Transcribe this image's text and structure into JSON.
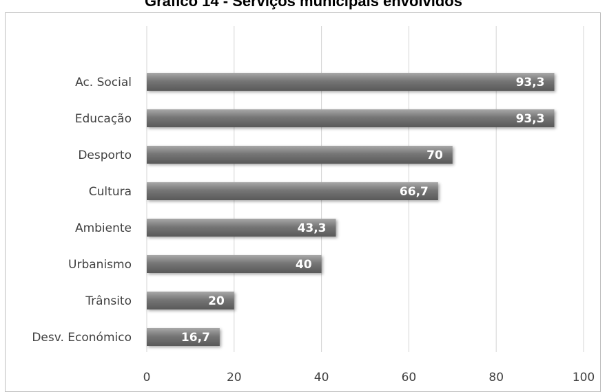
{
  "chart_data": {
    "type": "bar",
    "orientation": "horizontal",
    "title": "Gráfico 14 - Serviços municipais envolvidos",
    "categories": [
      "Ac. Social",
      "Educação",
      "Desporto",
      "Cultura",
      "Ambiente",
      "Urbanismo",
      "Trânsito",
      "Desv. Económico"
    ],
    "values": [
      93.3,
      93.3,
      70,
      66.7,
      43.3,
      40,
      20,
      16.7
    ],
    "data_labels": [
      "93,3",
      "93,3",
      "70",
      "66,7",
      "43,3",
      "40",
      "20",
      "16,7"
    ],
    "xlim": [
      0,
      100
    ],
    "xticks": [
      0,
      20,
      40,
      60,
      80,
      100
    ],
    "xtick_labels": [
      "0",
      "20",
      "40",
      "60",
      "80",
      "100"
    ],
    "grid": "vertical",
    "legend": "none",
    "colors": {
      "bar": "#6e6e6e",
      "bar_light": "#9a9a9a",
      "grid": "#d4d4d4",
      "text": "#404040"
    }
  }
}
